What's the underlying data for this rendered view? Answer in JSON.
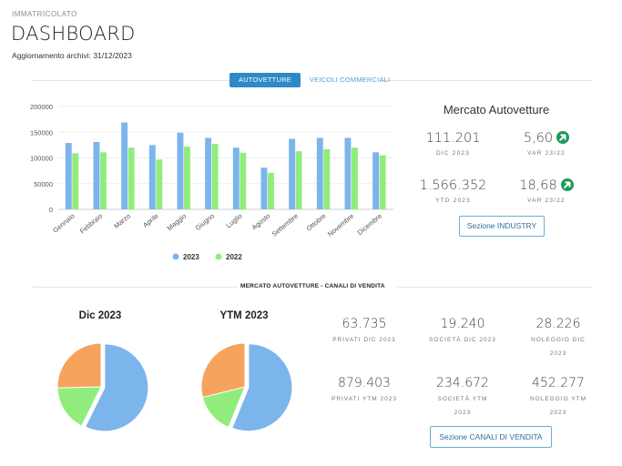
{
  "header": {
    "overline": "IMMATRICOLATO",
    "title": "DASHBOARD",
    "update_label": "Aggiornamento archivi:",
    "update_date": "31/12/2023"
  },
  "tabs": [
    {
      "label": "AUTOVETTURE",
      "active": true
    },
    {
      "label": "VEICOLI COMMERCIALI",
      "active": false
    }
  ],
  "chart_data": [
    {
      "type": "bar",
      "categories": [
        "Gennaio",
        "Febbraio",
        "Marzo",
        "Aprile",
        "Maggio",
        "Giugno",
        "Luglio",
        "Agosto",
        "Settembre",
        "Ottobre",
        "Novembre",
        "Dicembre"
      ],
      "series": [
        {
          "name": "2023",
          "color": "#7cb5ec",
          "values": [
            129000,
            131000,
            169000,
            125000,
            149000,
            139000,
            120000,
            81000,
            137000,
            139000,
            139000,
            111000
          ]
        },
        {
          "name": "2022",
          "color": "#90ed7d",
          "values": [
            109000,
            111000,
            120000,
            97000,
            122000,
            127000,
            110000,
            71000,
            113000,
            117000,
            120000,
            105000
          ]
        }
      ],
      "yticks": [
        "0",
        "50000",
        "100000",
        "150000",
        "200000"
      ],
      "ylim": [
        0,
        200000
      ],
      "legend_position": "bottom"
    },
    {
      "type": "pie",
      "title": "Dic 2023",
      "slices": [
        {
          "label": "Privati",
          "value": 63735,
          "color": "#7cb5ec"
        },
        {
          "label": "Società",
          "value": 19240,
          "color": "#90ed7d"
        },
        {
          "label": "Noleggio",
          "value": 28226,
          "color": "#f7a35c"
        }
      ]
    },
    {
      "type": "pie",
      "title": "YTM 2023",
      "slices": [
        {
          "label": "Privati",
          "value": 879403,
          "color": "#7cb5ec"
        },
        {
          "label": "Società",
          "value": 234672,
          "color": "#90ed7d"
        },
        {
          "label": "Noleggio",
          "value": 452277,
          "color": "#f7a35c"
        }
      ]
    }
  ],
  "market": {
    "title": "Mercato Autovetture",
    "dic_value": "111.201",
    "dic_label": "DIC 2023",
    "var_dic_value": "5,60",
    "var_dic_label": "VAR 23/22",
    "ytd_value": "1.566.352",
    "ytd_label": "YTD 2023",
    "var_ytd_value": "18,68",
    "var_ytd_label": "VAR 23/22",
    "button": "Sezione INDUSTRY"
  },
  "channels": {
    "heading": "MERCATO AUTOVETTURE - CANALI DI VENDITA",
    "pie1_title": "Dic 2023",
    "pie2_title": "YTM 2023",
    "privati_dic": "63.735",
    "privati_dic_label": "PRIVATI DIC 2023",
    "societa_dic": "19.240",
    "societa_dic_label": "SOCIETÀ DIC 2023",
    "noleggio_dic": "28.226",
    "noleggio_dic_label1": "NOLEGGIO DIC",
    "noleggio_dic_label2": "2023",
    "privati_ytm": "879.403",
    "privati_ytm_label": "PRIVATI YTM 2023",
    "societa_ytm": "234.672",
    "societa_ytm_label1": "SOCIETÀ YTM",
    "societa_ytm_label2": "2023",
    "noleggio_ytm": "452.277",
    "noleggio_ytm_label1": "NOLEGGIO YTM",
    "noleggio_ytm_label2": "2023",
    "button": "Sezione CANALI DI VENDITA"
  },
  "colors": {
    "accent": "#2e8ac6",
    "positive": "#1f9a5a"
  }
}
